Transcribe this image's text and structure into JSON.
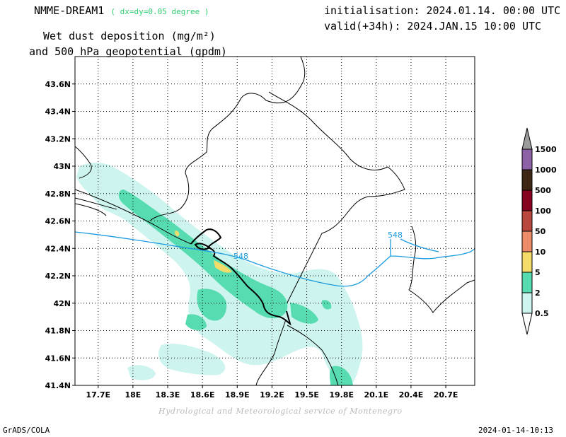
{
  "header": {
    "model": "NMME-DREAM1",
    "resolution": "( dx=dy=0.05 degree )",
    "initialisation": "initialisation: 2024.01.14. 00:00 UTC",
    "valid": "valid(+34h): 2024.JAN.15 10:00 UTC",
    "title_line1": "Wet dust deposition (mg/m²)",
    "title_line2": "and 500 hPa geopotential (gpdm)"
  },
  "map": {
    "lon_range": [
      17.5,
      20.95
    ],
    "lat_range": [
      41.4,
      43.8
    ],
    "lat_ticks": [
      {
        "value": 41.4,
        "label": "41.4N"
      },
      {
        "value": 41.6,
        "label": "41.6N"
      },
      {
        "value": 41.8,
        "label": "41.8N"
      },
      {
        "value": 42.0,
        "label": "42N"
      },
      {
        "value": 42.2,
        "label": "42.2N"
      },
      {
        "value": 42.4,
        "label": "42.4N"
      },
      {
        "value": 42.6,
        "label": "42.6N"
      },
      {
        "value": 42.8,
        "label": "42.8N"
      },
      {
        "value": 43.0,
        "label": "43N"
      },
      {
        "value": 43.2,
        "label": "43.2N"
      },
      {
        "value": 43.4,
        "label": "43.4N"
      },
      {
        "value": 43.6,
        "label": "43.6N"
      }
    ],
    "lon_ticks": [
      {
        "value": 17.7,
        "label": "17.7E"
      },
      {
        "value": 18.0,
        "label": "18E"
      },
      {
        "value": 18.3,
        "label": "18.3E"
      },
      {
        "value": 18.6,
        "label": "18.6E"
      },
      {
        "value": 18.9,
        "label": "18.9E"
      },
      {
        "value": 19.2,
        "label": "19.2E"
      },
      {
        "value": 19.5,
        "label": "19.5E"
      },
      {
        "value": 19.8,
        "label": "19.8E"
      },
      {
        "value": 20.1,
        "label": "20.1E"
      },
      {
        "value": 20.4,
        "label": "20.4E"
      },
      {
        "value": 20.7,
        "label": "20.7E"
      }
    ],
    "grid": "dotted",
    "contour": {
      "label": "548",
      "color": "#1a9be0",
      "label_positions": [
        {
          "lon": 18.93,
          "lat": 42.35
        },
        {
          "lon": 20.3,
          "lat": 42.51
        }
      ]
    }
  },
  "legend": {
    "placement": "right",
    "levels": [
      {
        "label": "0.5",
        "color": "#cdf4ee"
      },
      {
        "label": "2",
        "color": "#57dcb1"
      },
      {
        "label": "5",
        "color": "#f3dc6a"
      },
      {
        "label": "10",
        "color": "#ee8b68"
      },
      {
        "label": "50",
        "color": "#b8473e"
      },
      {
        "label": "100",
        "color": "#860020"
      },
      {
        "label": "500",
        "color": "#3e2715"
      },
      {
        "label": "1000",
        "color": "#8e62a6"
      },
      {
        "label": "1500",
        "color": "#9b9b9b"
      }
    ]
  },
  "footer": {
    "credit": "Hydrological and Meteorological service of Montenegro",
    "software": "GrADS/COLA",
    "timestamp": "2024-01-14-10:13"
  }
}
